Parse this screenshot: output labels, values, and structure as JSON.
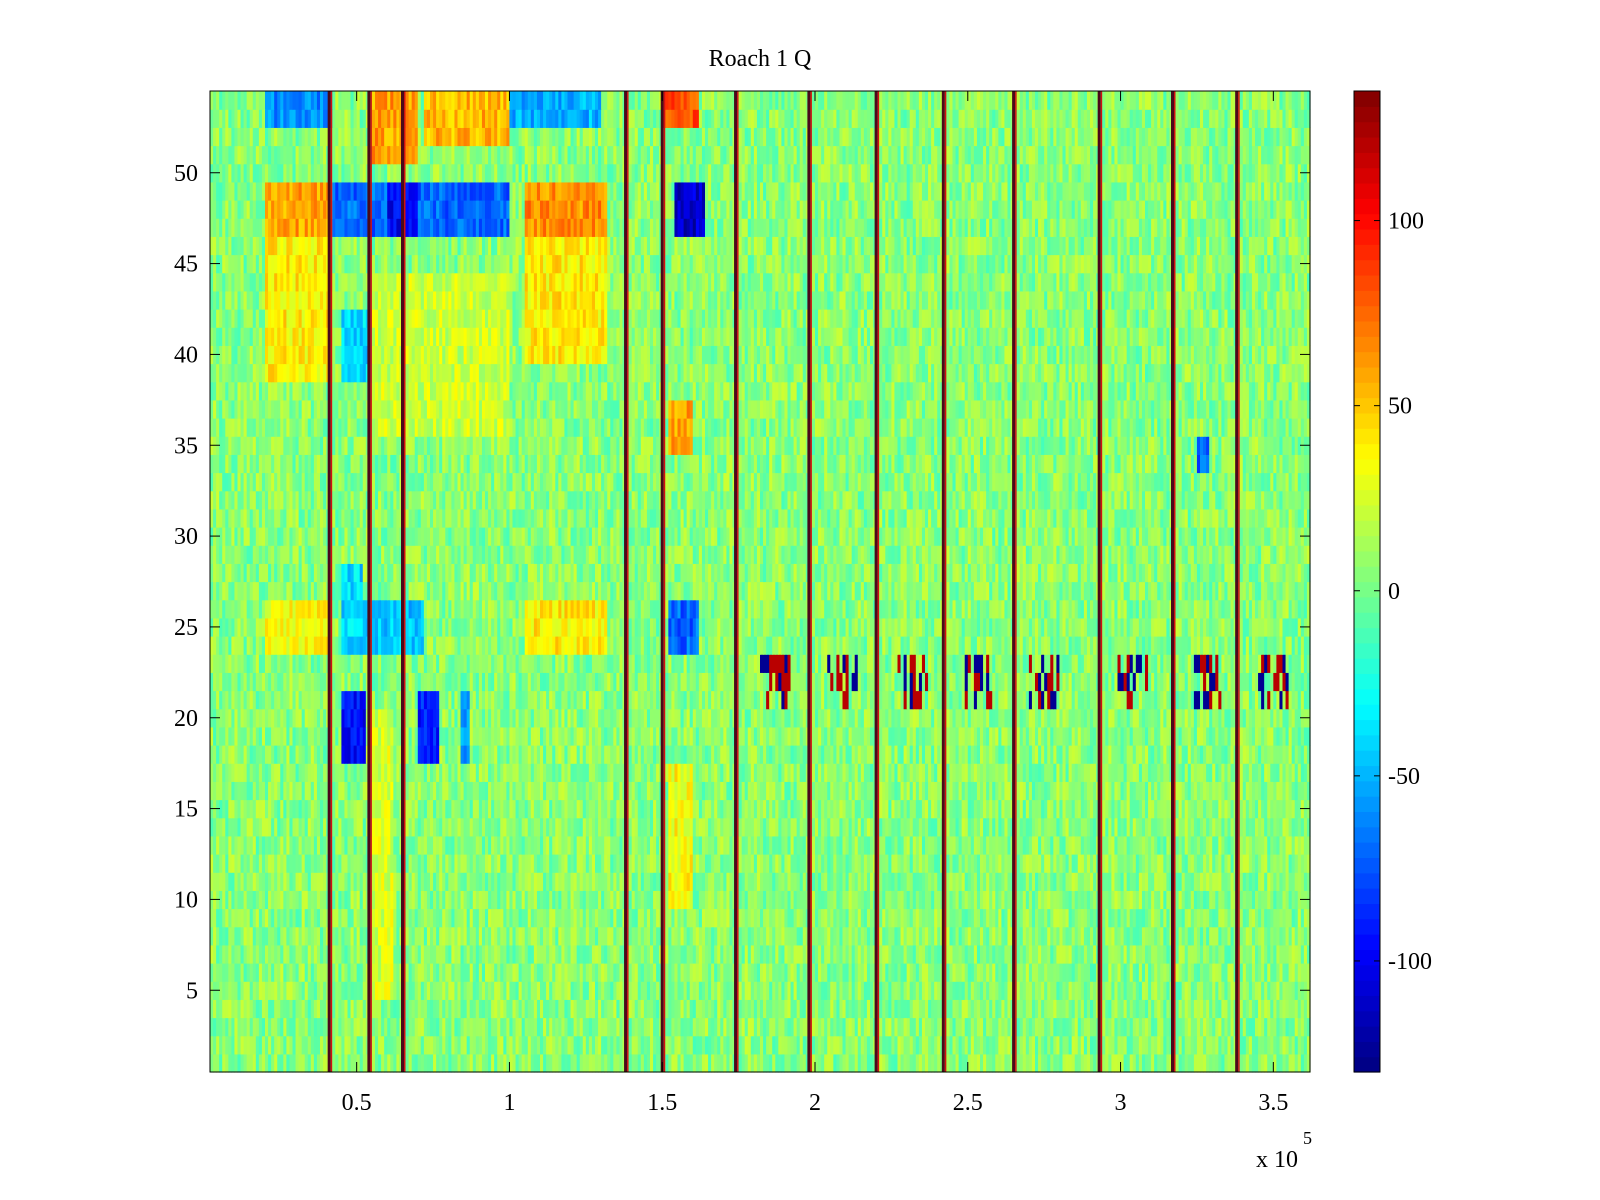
{
  "chart_data": {
    "type": "heatmap",
    "title": "Roach 1 Q",
    "xlabel": "",
    "ylabel": "",
    "x_exponent_label": "x 10",
    "x_exponent_power": "5",
    "xlim": [
      0.02,
      3.62
    ],
    "ylim": [
      0.5,
      54.5
    ],
    "x_ticks": [
      0.5,
      1,
      1.5,
      2,
      2.5,
      3,
      3.5
    ],
    "x_tick_labels": [
      "0.5",
      "1",
      "1.5",
      "2",
      "2.5",
      "3",
      "3.5"
    ],
    "y_ticks": [
      5,
      10,
      15,
      20,
      25,
      30,
      35,
      40,
      45,
      50
    ],
    "y_tick_labels": [
      "5",
      "10",
      "15",
      "20",
      "25",
      "30",
      "35",
      "40",
      "45",
      "50"
    ],
    "colorbar": {
      "colormap": "jet",
      "clim": [
        -130,
        135
      ],
      "ticks": [
        -100,
        -50,
        0,
        50,
        100
      ],
      "tick_labels": [
        "-100",
        "-50",
        "0",
        "50",
        "100"
      ]
    },
    "rows": 54,
    "background_value": 5,
    "noise_amplitude": 18,
    "vertical_stripe_x": [
      0.41,
      0.54,
      0.65,
      1.38,
      1.5,
      1.74,
      1.98,
      2.2,
      2.42,
      2.65,
      2.93,
      3.17,
      3.38
    ],
    "patches": [
      {
        "x": [
          0.2,
          0.42
        ],
        "y": [
          47,
          49
        ],
        "value": 60
      },
      {
        "x": [
          0.42,
          0.6
        ],
        "y": [
          47,
          49
        ],
        "value": -70
      },
      {
        "x": [
          0.6,
          0.7
        ],
        "y": [
          47,
          49
        ],
        "value": -100
      },
      {
        "x": [
          0.7,
          1.0
        ],
        "y": [
          47,
          49
        ],
        "value": -70
      },
      {
        "x": [
          1.05,
          1.32
        ],
        "y": [
          47,
          49
        ],
        "value": 65
      },
      {
        "x": [
          1.54,
          1.64
        ],
        "y": [
          47,
          49
        ],
        "value": -110
      },
      {
        "x": [
          0.2,
          0.42
        ],
        "y": [
          39,
          46
        ],
        "value": 40
      },
      {
        "x": [
          1.05,
          1.32
        ],
        "y": [
          40,
          46
        ],
        "value": 40
      },
      {
        "x": [
          0.45,
          0.55
        ],
        "y": [
          39,
          42
        ],
        "value": -40
      },
      {
        "x": [
          0.55,
          1.0
        ],
        "y": [
          36,
          44
        ],
        "value": 22
      },
      {
        "x": [
          0.2,
          0.42
        ],
        "y": [
          24,
          26
        ],
        "value": 35
      },
      {
        "x": [
          0.45,
          0.52
        ],
        "y": [
          24,
          28
        ],
        "value": -40
      },
      {
        "x": [
          0.52,
          0.72
        ],
        "y": [
          24,
          26
        ],
        "value": -45
      },
      {
        "x": [
          1.05,
          1.32
        ],
        "y": [
          24,
          26
        ],
        "value": 40
      },
      {
        "x": [
          1.52,
          1.62
        ],
        "y": [
          24,
          26
        ],
        "value": -70
      },
      {
        "x": [
          0.45,
          0.53
        ],
        "y": [
          18,
          21
        ],
        "value": -95
      },
      {
        "x": [
          0.7,
          0.77
        ],
        "y": [
          18,
          21
        ],
        "value": -90
      },
      {
        "x": [
          0.84,
          0.87
        ],
        "y": [
          18,
          21
        ],
        "value": -60
      },
      {
        "x": [
          0.55,
          0.62
        ],
        "y": [
          5,
          20
        ],
        "value": 25
      },
      {
        "x": [
          1.52,
          1.6
        ],
        "y": [
          10,
          17
        ],
        "value": 35
      },
      {
        "x": [
          1.52,
          1.6
        ],
        "y": [
          35,
          37
        ],
        "value": 60
      },
      {
        "x": [
          0.2,
          0.42
        ],
        "y": [
          53,
          54
        ],
        "value": -60
      },
      {
        "x": [
          0.55,
          0.7
        ],
        "y": [
          51,
          54
        ],
        "value": 60
      },
      {
        "x": [
          0.72,
          1.0
        ],
        "y": [
          52,
          54
        ],
        "value": 55
      },
      {
        "x": [
          1.0,
          1.3
        ],
        "y": [
          53,
          54
        ],
        "value": -50
      },
      {
        "x": [
          1.5,
          1.62
        ],
        "y": [
          53,
          54
        ],
        "value": 80
      },
      {
        "x": [
          3.25,
          3.29
        ],
        "y": [
          34,
          35
        ],
        "value": -70
      }
    ],
    "dark_band": {
      "y": [
        21,
        23
      ],
      "clusters": [
        [
          1.82,
          1.92
        ],
        [
          2.04,
          2.14
        ],
        [
          2.27,
          2.37
        ],
        [
          2.49,
          2.58
        ],
        [
          2.7,
          2.8
        ],
        [
          2.99,
          3.09
        ],
        [
          3.24,
          3.33
        ],
        [
          3.45,
          3.55
        ]
      ]
    }
  }
}
